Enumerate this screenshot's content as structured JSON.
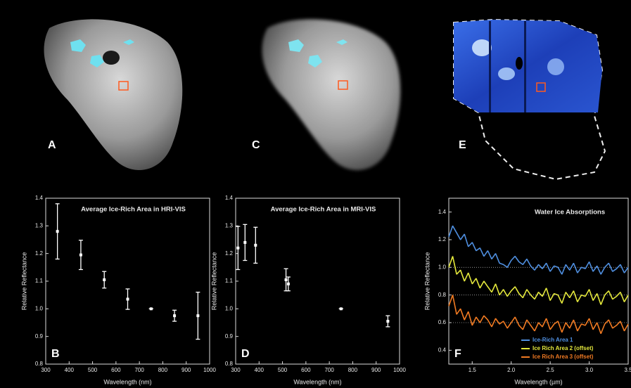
{
  "image_panels": [
    {
      "label": "A"
    },
    {
      "label": "C"
    },
    {
      "label": "E"
    }
  ],
  "chart_data": [
    {
      "type": "scatter",
      "title": "Average Ice-Rich Area in HRI-VIS",
      "panel_label": "B",
      "x_label": "Wavelength (nm)",
      "y_label": "Relative Reflectance",
      "color": "#ffffff",
      "x": [
        350,
        450,
        550,
        650,
        750,
        850,
        950
      ],
      "values": [
        1.28,
        1.195,
        1.105,
        1.035,
        1.0,
        0.975,
        0.975
      ],
      "errors": [
        0.1,
        0.053,
        0.03,
        0.037,
        0,
        0.02,
        0.085
      ],
      "xlim": [
        300,
        1000
      ],
      "xticks": [
        300,
        400,
        500,
        600,
        700,
        800,
        900,
        1000
      ],
      "ylim": [
        0.8,
        1.4
      ],
      "yticks": [
        0.8,
        0.9,
        {
          "value": 1,
          "label": "1.0"
        },
        1.1,
        1.2,
        1.3,
        1.4
      ]
    },
    {
      "type": "scatter",
      "title": "Average Ice-Rich Area in MRI-VIS",
      "panel_label": "D",
      "x_label": "Wavelength (nm)",
      "y_label": "Relative Reflectance",
      "color": "#ffffff",
      "x": [
        310,
        340,
        385,
        515,
        525,
        750,
        950
      ],
      "values": [
        1.22,
        1.24,
        1.23,
        1.105,
        1.09,
        1.0,
        0.955
      ],
      "errors": [
        0.078,
        0.065,
        0.065,
        0.04,
        0.025,
        0,
        0.02
      ],
      "xlim": [
        300,
        1000
      ],
      "xticks": [
        300,
        400,
        500,
        600,
        700,
        800,
        900,
        1000
      ],
      "ylim": [
        0.8,
        1.4
      ],
      "yticks": [
        0.8,
        0.9,
        {
          "value": 1,
          "label": "1.0"
        },
        1.1,
        1.2,
        1.3,
        1.4
      ]
    },
    {
      "type": "line",
      "panel_label": "F",
      "annotation": "Water Ice Absorptions",
      "x_label": "Wavelength (µm)",
      "y_label": "Relative Reflectance",
      "x": [
        1.2,
        1.25,
        1.3,
        1.35,
        1.4,
        1.45,
        1.5,
        1.55,
        1.6,
        1.65,
        1.7,
        1.75,
        1.8,
        1.85,
        1.9,
        1.95,
        2.0,
        2.05,
        2.1,
        2.15,
        2.2,
        2.25,
        2.3,
        2.35,
        2.4,
        2.45,
        2.5,
        2.55,
        2.6,
        2.65,
        2.7,
        2.75,
        2.8,
        2.85,
        2.9,
        2.95,
        3.0,
        3.05,
        3.1,
        3.15,
        3.2,
        3.25,
        3.3,
        3.35,
        3.4,
        3.45,
        3.5
      ],
      "series": [
        {
          "name": "Ice-Rich Area 1",
          "color": "#4f8fe0",
          "values": [
            1.22,
            1.3,
            1.25,
            1.2,
            1.24,
            1.15,
            1.18,
            1.12,
            1.14,
            1.08,
            1.12,
            1.06,
            1.1,
            1.03,
            1.02,
            1.0,
            1.05,
            1.08,
            1.04,
            1.02,
            1.06,
            1.01,
            0.98,
            1.02,
            0.99,
            1.03,
            0.97,
            1.01,
            1.0,
            0.95,
            1.02,
            0.98,
            1.03,
            0.96,
            1.0,
            0.99,
            1.04,
            0.97,
            1.01,
            0.95,
            1.0,
            1.03,
            0.97,
            0.99,
            1.02,
            0.96,
            1.0
          ]
        },
        {
          "name": "Ice Rich Area 2 (offset)",
          "color": "#e4e83c",
          "values": [
            1.0,
            1.08,
            0.95,
            0.98,
            0.9,
            0.96,
            0.88,
            0.92,
            0.85,
            0.9,
            0.86,
            0.82,
            0.88,
            0.8,
            0.84,
            0.79,
            0.83,
            0.86,
            0.81,
            0.78,
            0.84,
            0.8,
            0.77,
            0.82,
            0.79,
            0.85,
            0.76,
            0.81,
            0.8,
            0.74,
            0.82,
            0.78,
            0.83,
            0.75,
            0.8,
            0.79,
            0.84,
            0.76,
            0.81,
            0.73,
            0.8,
            0.83,
            0.77,
            0.79,
            0.82,
            0.75,
            0.8
          ]
        },
        {
          "name": "Ice Rich Area 3 (offset)",
          "color": "#f07a22",
          "values": [
            0.72,
            0.8,
            0.66,
            0.7,
            0.62,
            0.68,
            0.58,
            0.64,
            0.6,
            0.65,
            0.62,
            0.57,
            0.63,
            0.59,
            0.61,
            0.56,
            0.6,
            0.64,
            0.58,
            0.55,
            0.62,
            0.58,
            0.54,
            0.6,
            0.57,
            0.63,
            0.55,
            0.59,
            0.61,
            0.53,
            0.6,
            0.56,
            0.62,
            0.54,
            0.59,
            0.58,
            0.63,
            0.55,
            0.6,
            0.52,
            0.59,
            0.62,
            0.56,
            0.58,
            0.61,
            0.54,
            0.59
          ]
        }
      ],
      "hlines": [
        1,
        0.8,
        0.6
      ],
      "xlim": [
        1.2,
        3.5
      ],
      "xticks": [
        1.5,
        {
          "value": 2,
          "label": "2.0"
        },
        2.5,
        {
          "value": 3,
          "label": "3.0"
        },
        3.5
      ],
      "ylim": [
        0.3,
        1.5
      ],
      "yticks": [
        0.4,
        0.6,
        0.8,
        {
          "value": 1,
          "label": "1.0"
        },
        1.2,
        1.4
      ]
    }
  ]
}
